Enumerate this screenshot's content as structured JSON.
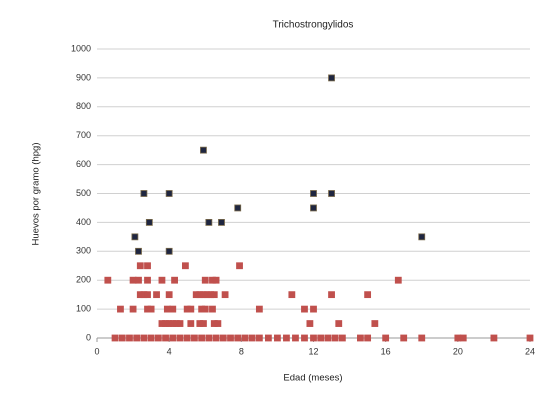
{
  "chart_data": {
    "type": "scatter",
    "title": "Trichostrongylidos",
    "x_label": "Edad (meses)",
    "y_label": "Huevos por gramo (hpg)",
    "xlim": [
      0,
      24
    ],
    "xticks": [
      0,
      4,
      8,
      12,
      16,
      20,
      24
    ],
    "ylim": [
      0,
      1000
    ],
    "yticks": [
      0,
      100,
      200,
      300,
      400,
      500,
      600,
      700,
      800,
      900,
      1000
    ],
    "grid": true,
    "series": [
      {
        "color": "#c0504d",
        "x": [
          0.6,
          2.0,
          2.3,
          2.8,
          3.6,
          4.3,
          6.0,
          6.4,
          6.6,
          16.7,
          2.4,
          2.8,
          4.9,
          7.9,
          2.4,
          2.6,
          2.8,
          3.3,
          4.0,
          5.5,
          5.7,
          5.9,
          6.1,
          6.3,
          6.5,
          7.1,
          10.8,
          13.0,
          15.0,
          1.3,
          2.0,
          2.8,
          3.0,
          3.9,
          4.2,
          5.0,
          5.2,
          5.8,
          6.0,
          6.4,
          9.0,
          11.5,
          12.0,
          3.6,
          3.8,
          4.0,
          4.2,
          4.4,
          4.6,
          5.2,
          5.7,
          5.9,
          6.5,
          6.7,
          11.8,
          13.4,
          15.4,
          1.0,
          1.4,
          1.8,
          2.2,
          2.6,
          3.0,
          3.4,
          3.8,
          4.2,
          4.6,
          5.0,
          5.4,
          5.8,
          6.2,
          6.6,
          7.0,
          7.4,
          7.8,
          8.2,
          8.6,
          9.0,
          9.5,
          10.0,
          10.5,
          11.0,
          11.5,
          12.0,
          12.4,
          12.8,
          13.2,
          13.6,
          14.6,
          15.0,
          16.0,
          17.0,
          18.0,
          20.0,
          20.3,
          22.0,
          24.0
        ],
        "values": [
          200,
          200,
          200,
          200,
          200,
          200,
          200,
          200,
          200,
          200,
          250,
          250,
          250,
          250,
          150,
          150,
          150,
          150,
          150,
          150,
          150,
          150,
          150,
          150,
          150,
          150,
          150,
          150,
          150,
          100,
          100,
          100,
          100,
          100,
          100,
          100,
          100,
          100,
          100,
          100,
          100,
          100,
          100,
          50,
          50,
          50,
          50,
          50,
          50,
          50,
          50,
          50,
          50,
          50,
          50,
          50,
          50,
          0,
          0,
          0,
          0,
          0,
          0,
          0,
          0,
          0,
          0,
          0,
          0,
          0,
          0,
          0,
          0,
          0,
          0,
          0,
          0,
          0,
          0,
          0,
          0,
          0,
          0,
          0,
          0,
          0,
          0,
          0,
          0,
          0,
          0,
          0,
          0,
          0,
          0,
          0,
          0
        ]
      },
      {
        "color": "#1f2640",
        "x": [
          2.1,
          2.3,
          2.6,
          2.9,
          4.0,
          4.0,
          5.9,
          6.2,
          6.9,
          7.8,
          12.0,
          12.0,
          13.0,
          13.0,
          18.0
        ],
        "values": [
          350,
          300,
          500,
          400,
          500,
          300,
          650,
          400,
          400,
          450,
          500,
          450,
          900,
          500,
          350
        ]
      }
    ]
  }
}
